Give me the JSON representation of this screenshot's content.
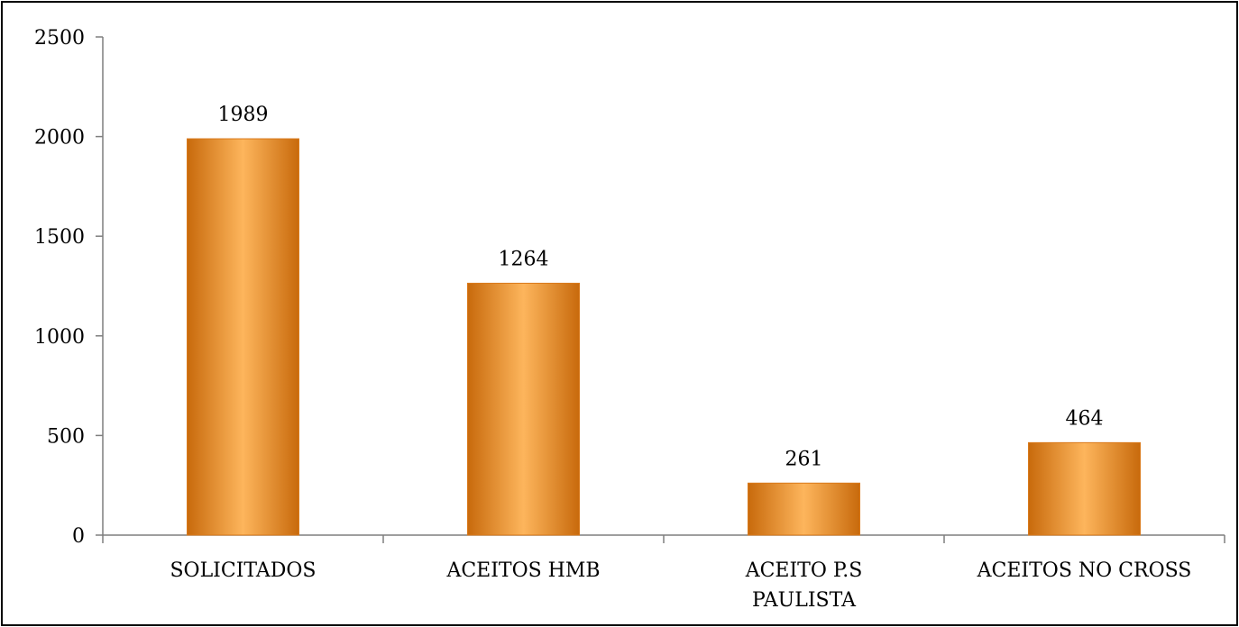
{
  "chart_data": {
    "type": "bar",
    "title": "",
    "xlabel": "",
    "ylabel": "",
    "categories": [
      [
        "SOLICITADOS"
      ],
      [
        "ACEITOS HMB"
      ],
      [
        "ACEITO P.S",
        "PAULISTA"
      ],
      [
        "ACEITOS NO CROSS"
      ]
    ],
    "values": [
      1989,
      1264,
      261,
      464
    ],
    "data_labels": [
      "1989",
      "1264",
      "261",
      "464"
    ],
    "ylim": [
      0,
      2500
    ],
    "yticks": [
      0,
      500,
      1000,
      1500,
      2000,
      2500
    ],
    "grid": false,
    "legend": "none",
    "bar_color": "#F7941D",
    "bar_color_light": "#FDB55C",
    "bar_color_dark": "#C86A0C"
  }
}
